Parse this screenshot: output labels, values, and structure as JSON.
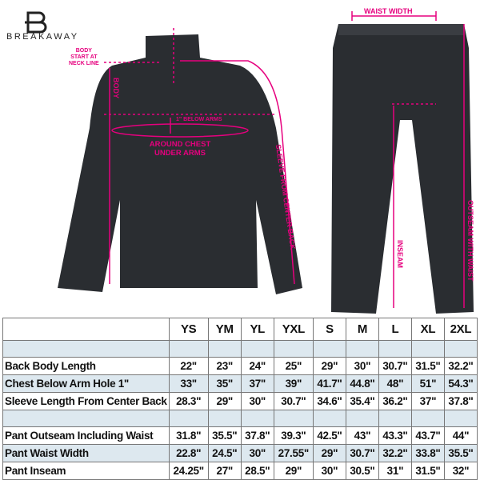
{
  "brand": {
    "name": "BREAKAWAY",
    "logo_letter": "B"
  },
  "colors": {
    "accent": "#e6007e",
    "garment": "#2a2d31",
    "row_highlight": "#dde8ef"
  },
  "annotations": {
    "body_start": [
      "BODY",
      "START AT",
      "NECK LINE"
    ],
    "body": "BODY",
    "below_arms": "1\" BELOW ARMS",
    "chest": [
      "AROUND CHEST",
      "UNDER ARMS"
    ],
    "sleeve": "SLEEVE FROM CENTER BACK",
    "waist_width": "WAIST WIDTH",
    "inseam": "INSEAM",
    "outseam": "OUTSEAM WITH WAIST"
  },
  "table": {
    "sizes": [
      "YS",
      "YM",
      "YL",
      "YXL",
      "S",
      "M",
      "L",
      "XL",
      "2XL"
    ],
    "rows": [
      {
        "label": "",
        "values": [
          "",
          "",
          "",
          "",
          "",
          "",
          "",
          "",
          ""
        ],
        "blank": true,
        "blue": true
      },
      {
        "label": "Back Body Length",
        "values": [
          "22\"",
          "23\"",
          "24\"",
          "25\"",
          "29\"",
          "30\"",
          "30.7\"",
          "31.5\"",
          "32.2\""
        ]
      },
      {
        "label": "Chest Below Arm Hole 1\"",
        "values": [
          "33\"",
          "35\"",
          "37\"",
          "39\"",
          "41.7\"",
          "44.8\"",
          "48\"",
          "51\"",
          "54.3\""
        ],
        "blue": true
      },
      {
        "label": "Sleeve Length From Center Back",
        "values": [
          "28.3\"",
          "29\"",
          "30\"",
          "30.7\"",
          "34.6\"",
          "35.4\"",
          "36.2\"",
          "37\"",
          "37.8\""
        ]
      },
      {
        "label": "",
        "values": [
          "",
          "",
          "",
          "",
          "",
          "",
          "",
          "",
          ""
        ],
        "blank": true,
        "blue": true
      },
      {
        "label": "Pant Outseam Including Waist",
        "values": [
          "31.8\"",
          "35.5\"",
          "37.8\"",
          "39.3\"",
          "42.5\"",
          "43\"",
          "43.3\"",
          "43.7\"",
          "44\""
        ]
      },
      {
        "label": "Pant Waist Width",
        "values": [
          "22.8\"",
          "24.5\"",
          "30\"",
          "27.55\"",
          "29\"",
          "30.7\"",
          "32.2\"",
          "33.8\"",
          "35.5\""
        ],
        "blue": true
      },
      {
        "label": "Pant Inseam",
        "values": [
          "24.25\"",
          "27\"",
          "28.5\"",
          "29\"",
          "30\"",
          "30.5\"",
          "31\"",
          "31.5\"",
          "32\""
        ]
      }
    ]
  }
}
